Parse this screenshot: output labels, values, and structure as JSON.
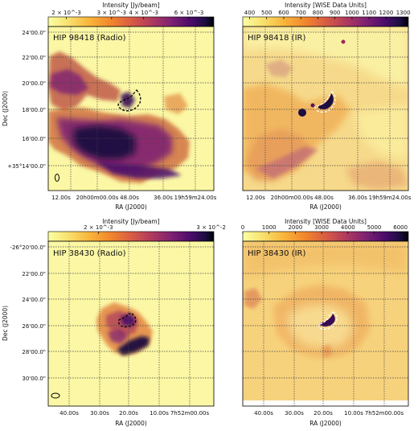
{
  "chart_data": [
    {
      "type": "heatmap",
      "title": "HIP 98418 (Radio)",
      "colorbar": {
        "label": "Intensity [Jy/beam]",
        "ticks": [
          "2 × 10^-3",
          "3 × 10^-3",
          "4 × 10^-3",
          "6 × 10^-3"
        ],
        "tick_values": [
          0.002,
          0.003,
          0.004,
          0.006
        ],
        "range": [
          0.0017,
          0.0075
        ],
        "scale": "log",
        "colormap": "inferno_r"
      },
      "xlabel": "RA (J2000)",
      "ylabel": "Dec (J2000)",
      "x_ticks": [
        "12.00s",
        "20h00m00.00s",
        "48.00s",
        "36.00s",
        "19h59m24.00s"
      ],
      "y_ticks": [
        "24'00.0\"",
        "22'00.0\"",
        "20'00.0\"",
        "18'00.0\"",
        "16'00.0\"",
        "+35°14'00.0\""
      ],
      "contour": "dashed, black",
      "beam": "ellipse, lower-left",
      "grid": true
    },
    {
      "type": "heatmap",
      "title": "HIP 98418 (IR)",
      "colorbar": {
        "label": "Intensity [WISE Data Units]",
        "ticks": [
          "400",
          "500",
          "600",
          "700",
          "800",
          "900",
          "1000",
          "1100",
          "1200",
          "1300"
        ],
        "tick_values": [
          400,
          500,
          600,
          700,
          800,
          900,
          1000,
          1100,
          1200,
          1300
        ],
        "range": [
          360,
          1330
        ],
        "scale": "linear",
        "colormap": "inferno_r"
      },
      "xlabel": "RA (J2000)",
      "x_ticks": [
        "12.00s",
        "20h00m00.00s",
        "48.00s",
        "36.00s",
        "19h59m24.00s"
      ],
      "contour": "dashed, white",
      "grid": true
    },
    {
      "type": "heatmap",
      "title": "HIP 38430 (Radio)",
      "colorbar": {
        "label": "Intensity [Jy/beam]",
        "ticks": [
          "2 × 10^-3",
          "3 × 10^-2"
        ],
        "tick_values": [
          0.002,
          0.03
        ],
        "range": [
          0.0006,
          0.032
        ],
        "scale": "log",
        "colormap": "inferno_r"
      },
      "xlabel": "RA (J2000)",
      "ylabel": "Dec (J2000)",
      "x_ticks": [
        "40.00s",
        "30.00s",
        "20.00s",
        "10.00s",
        "7h52m00.00s"
      ],
      "y_ticks": [
        "-26°20'00.0\"",
        "22'00.0\"",
        "24'00.0\"",
        "26'00.0\"",
        "28'00.0\"",
        "30'00.0\""
      ],
      "contour": "dashed, black",
      "beam": "ellipse, lower-left",
      "grid": true
    },
    {
      "type": "heatmap",
      "title": "HIP 38430 (IR)",
      "colorbar": {
        "label": "Intensity [WISE Data Units]",
        "ticks": [
          "0",
          "1000",
          "2000",
          "3000",
          "4000",
          "5000",
          "6000"
        ],
        "tick_values": [
          0,
          1000,
          2000,
          3000,
          4000,
          5000,
          6000
        ],
        "range": [
          0,
          6300
        ],
        "scale": "linear",
        "colormap": "inferno_r"
      },
      "xlabel": "RA (J2000)",
      "x_ticks": [
        "40.00s",
        "30.00s",
        "20.00s",
        "10.00s",
        "7h52m00.00s"
      ],
      "contour": "dashed, white",
      "grid": true
    }
  ]
}
